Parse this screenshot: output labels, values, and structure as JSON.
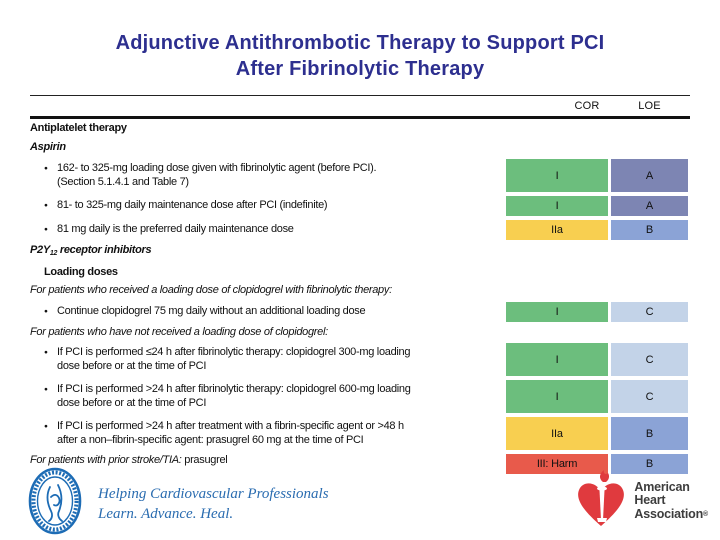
{
  "title": {
    "line1": "Adjunctive Antithrombotic Therapy to Support PCI",
    "line2": "After Fibrinolytic Therapy"
  },
  "colors": {
    "title": "#2d2f8f",
    "footer_blue": "#2a6cb0",
    "aha_red": "#e03a3e",
    "acc_blue": "#1d6cb5",
    "cells": {
      "green": "#6cbe7d",
      "slate": "#7d85b3",
      "yellow": "#f8cf50",
      "blue": "#8ba3d6",
      "lightblue": "#c3d3e8",
      "red": "#e85a4b"
    }
  },
  "table": {
    "cor_header": "COR",
    "loe_header": "LOE",
    "rows": [
      {
        "kind": "header",
        "indent": 0,
        "lines": [
          [
            {
              "t": "Antiplatelet therapy",
              "s": "b"
            }
          ]
        ]
      },
      {
        "kind": "header",
        "indent": 0,
        "lines": [
          [
            {
              "t": "Aspirin",
              "s": "bi"
            }
          ]
        ]
      },
      {
        "kind": "bullet",
        "cor": "I",
        "loe": "A",
        "cor_color": "green",
        "loe_color": "slate",
        "lines": [
          [
            {
              "t": "162- to 325-mg loading dose given with fibrinolytic agent (before PCI).",
              "s": "n"
            }
          ],
          [
            {
              "t": "(Section 5.1.4.1 and Table 7)",
              "s": "n"
            }
          ]
        ]
      },
      {
        "kind": "bullet",
        "cor": "I",
        "loe": "A",
        "cor_color": "green",
        "loe_color": "slate",
        "lines": [
          [
            {
              "t": "81- to 325-mg daily maintenance dose after PCI (indefinite)",
              "s": "n"
            }
          ]
        ]
      },
      {
        "kind": "bullet",
        "cor": "IIa",
        "loe": "B",
        "cor_color": "yellow",
        "loe_color": "blue",
        "lines": [
          [
            {
              "t": "81 mg daily is the preferred daily maintenance dose",
              "s": "n"
            }
          ]
        ]
      },
      {
        "kind": "header",
        "indent": 0,
        "lines": [
          [
            {
              "t": "P2Y",
              "s": "bi"
            },
            {
              "t": "12",
              "s": "bisub"
            },
            {
              "t": " receptor inhibitors",
              "s": "bi"
            }
          ]
        ]
      },
      {
        "kind": "header",
        "indent": 1,
        "lines": [
          [
            {
              "t": "Loading doses",
              "s": "b"
            }
          ]
        ]
      },
      {
        "kind": "condition",
        "indent": 0,
        "lines": [
          [
            {
              "t": "For patients who received a loading dose of clopidogrel with fibrinolytic therapy:",
              "s": "i"
            }
          ]
        ]
      },
      {
        "kind": "bullet",
        "cor": "I",
        "loe": "C",
        "cor_color": "green",
        "loe_color": "lightblue",
        "lines": [
          [
            {
              "t": "Continue clopidogrel 75 mg daily without an additional loading dose",
              "s": "n"
            }
          ]
        ]
      },
      {
        "kind": "condition",
        "indent": 0,
        "lines": [
          [
            {
              "t": "For patients who have not received a loading dose of clopidogrel:",
              "s": "i"
            }
          ]
        ]
      },
      {
        "kind": "bullet",
        "cor": "I",
        "loe": "C",
        "cor_color": "green",
        "loe_color": "lightblue",
        "lines": [
          [
            {
              "t": "If PCI is performed ≤24 h after fibrinolytic therapy: clopidogrel 300-mg loading",
              "s": "n"
            }
          ],
          [
            {
              "t": "dose before or at the time of PCI",
              "s": "n"
            }
          ]
        ]
      },
      {
        "kind": "bullet",
        "cor": "I",
        "loe": "C",
        "cor_color": "green",
        "loe_color": "lightblue",
        "lines": [
          [
            {
              "t": "If PCI is performed >24 h after fibrinolytic therapy: clopidogrel 600-mg loading",
              "s": "n"
            }
          ],
          [
            {
              "t": "dose before or at the time of PCI",
              "s": "n"
            }
          ]
        ]
      },
      {
        "kind": "bullet",
        "cor": "IIa",
        "loe": "B",
        "cor_color": "yellow",
        "loe_color": "blue",
        "lines": [
          [
            {
              "t": "If PCI is performed >24 h after treatment with a fibrin-specific agent or >48 h",
              "s": "n"
            }
          ],
          [
            {
              "t": "after a non–fibrin-specific agent: prasugrel 60 mg at the time of PCI",
              "s": "n"
            }
          ]
        ]
      },
      {
        "kind": "condition",
        "cor": "III: Harm",
        "loe": "B",
        "cor_color": "red",
        "loe_color": "blue",
        "indent": 0,
        "lines": [
          [
            {
              "t": "For patients with prior stroke/TIA:",
              "s": "i"
            },
            {
              "t": " prasugrel",
              "s": "n"
            }
          ]
        ]
      }
    ]
  },
  "footer": {
    "acc_logo": "American College of Cardiology seal",
    "tagline_line1": "Helping Cardiovascular Professionals",
    "tagline_line2": "Learn. Advance. Heal.",
    "aha_logo": "American Heart Association heart-and-torch",
    "aha_line1": "American",
    "aha_line2": "Heart",
    "aha_line3": "Association",
    "aha_registered": "®"
  }
}
